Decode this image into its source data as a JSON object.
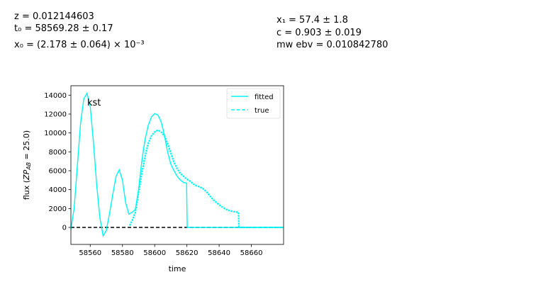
{
  "fit_results": {
    "z": "z = 0.012144603",
    "t0": "t₀ = 58569.28 ± 0.17",
    "x0": "x₀ = (2.178 ± 0.064) × 10⁻³",
    "x1": "x₁ = 57.4 ± 1.8",
    "c": "c = 0.903 ± 0.019",
    "mwebv": "mw ebv = 0.010842780"
  },
  "chart_data": {
    "type": "line",
    "band_label": "kst",
    "xlabel": "time",
    "ylabel": "flux (ZP_AB = 25.0)",
    "xlim": [
      58548,
      58680
    ],
    "ylim": [
      -1800,
      15000
    ],
    "xticks": [
      58560,
      58580,
      58600,
      58620,
      58640,
      58660
    ],
    "yticks": [
      0,
      2000,
      4000,
      6000,
      8000,
      10000,
      12000,
      14000
    ],
    "legend": {
      "placement": "top-right",
      "entries": [
        "fitted",
        "true"
      ]
    },
    "colors": {
      "series": "#00f5f5",
      "zero_line": "#000000"
    },
    "series": [
      {
        "name": "fitted",
        "style": "solid",
        "x": [
          58548,
          58550,
          58552,
          58554,
          58556,
          58558,
          58560,
          58562,
          58564,
          58566,
          58568,
          58570,
          58572,
          58574,
          58576,
          58578,
          58580,
          58582,
          58584,
          58586,
          58588,
          58590,
          58592,
          58594,
          58596,
          58598,
          58600,
          58602,
          58604,
          58606,
          58608,
          58610,
          58612,
          58614,
          58616,
          58618,
          58619.8,
          58620.2,
          58630,
          58652,
          58680
        ],
        "y": [
          -200,
          2000,
          6500,
          11000,
          13600,
          14200,
          12800,
          9000,
          4500,
          1000,
          -900,
          -300,
          1500,
          3500,
          5400,
          6100,
          5000,
          2600,
          1400,
          1600,
          1900,
          4000,
          7000,
          9300,
          10800,
          11700,
          12050,
          11900,
          11200,
          9800,
          8000,
          6700,
          6000,
          5400,
          5000,
          4750,
          4700,
          0,
          0,
          0,
          0
        ]
      },
      {
        "name": "true",
        "style": "dashed",
        "x": [
          58584.5,
          58586,
          58588,
          58590,
          58592,
          58594,
          58596,
          58598,
          58600,
          58602,
          58604,
          58606,
          58608,
          58610,
          58612,
          58614,
          58616,
          58618,
          58620,
          58622,
          58624,
          58626,
          58628,
          58630,
          58632,
          58634,
          58636,
          58638,
          58640,
          58642,
          58644,
          58646,
          58648,
          58650,
          58652,
          58652.3,
          58655,
          58660,
          58665,
          58667,
          58680
        ],
        "y": [
          200,
          700,
          1600,
          3700,
          5700,
          7500,
          8900,
          9700,
          10100,
          10300,
          10100,
          9700,
          8900,
          7900,
          6900,
          6200,
          5700,
          5400,
          5100,
          4900,
          4600,
          4400,
          4300,
          4100,
          3800,
          3400,
          3000,
          2700,
          2400,
          2150,
          1950,
          1800,
          1700,
          1650,
          1600,
          0,
          0,
          0,
          0,
          0,
          0
        ]
      }
    ]
  }
}
